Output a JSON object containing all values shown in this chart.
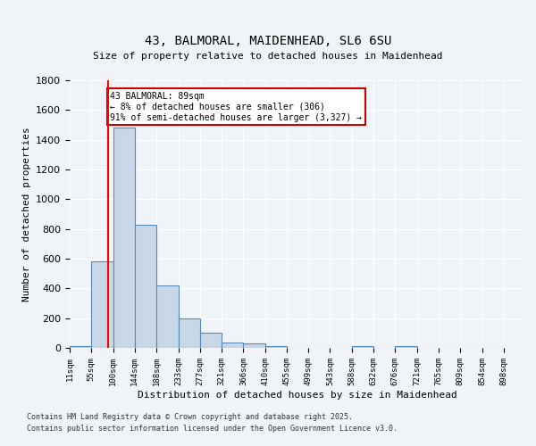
{
  "title_line1": "43, BALMORAL, MAIDENHEAD, SL6 6SU",
  "title_line2": "Size of property relative to detached houses in Maidenhead",
  "xlabel": "Distribution of detached houses by size in Maidenhead",
  "ylabel": "Number of detached properties",
  "bin_labels": [
    "11sqm",
    "55sqm",
    "100sqm",
    "144sqm",
    "188sqm",
    "233sqm",
    "277sqm",
    "321sqm",
    "366sqm",
    "410sqm",
    "455sqm",
    "499sqm",
    "543sqm",
    "588sqm",
    "632sqm",
    "676sqm",
    "721sqm",
    "765sqm",
    "809sqm",
    "854sqm",
    "898sqm"
  ],
  "bin_edges": [
    11,
    55,
    100,
    144,
    188,
    233,
    277,
    321,
    366,
    410,
    455,
    499,
    543,
    588,
    632,
    676,
    721,
    765,
    809,
    854,
    898
  ],
  "bar_heights": [
    15,
    585,
    1480,
    830,
    420,
    200,
    100,
    35,
    30,
    15,
    0,
    0,
    0,
    15,
    0,
    15,
    0,
    0,
    0,
    0
  ],
  "bar_color": "#c8d8e8",
  "bar_edge_color": "#5588bb",
  "red_line_x": 89,
  "annotation_text": "43 BALMORAL: 89sqm\n← 8% of detached houses are smaller (306)\n91% of semi-detached houses are larger (3,327) →",
  "annotation_box_color": "#ffffff",
  "annotation_box_edge_color": "#cc0000",
  "ylim": [
    0,
    1800
  ],
  "yticks": [
    0,
    200,
    400,
    600,
    800,
    1000,
    1200,
    1400,
    1600,
    1800
  ],
  "background_color": "#f0f4f8",
  "grid_color": "#ffffff",
  "footer_line1": "Contains HM Land Registry data © Crown copyright and database right 2025.",
  "footer_line2": "Contains public sector information licensed under the Open Government Licence v3.0."
}
